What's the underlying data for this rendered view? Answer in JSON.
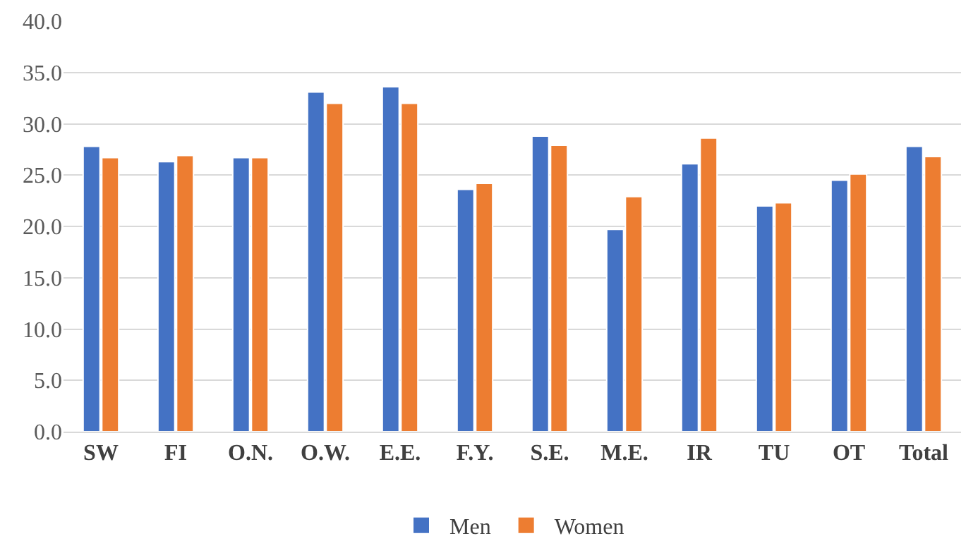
{
  "chart_data": {
    "type": "bar",
    "categories": [
      "SW",
      "FI",
      "O.N.",
      "O.W.",
      "E.E.",
      "F.Y.",
      "S.E.",
      "M.E.",
      "IR",
      "TU",
      "OT",
      "Total"
    ],
    "series": [
      {
        "name": "Men",
        "color": "#4472c4",
        "values": [
          27.8,
          26.3,
          26.7,
          33.1,
          33.6,
          23.6,
          28.8,
          19.7,
          26.1,
          22.0,
          24.5,
          27.8
        ]
      },
      {
        "name": "Women",
        "color": "#ed7d31",
        "values": [
          26.7,
          26.9,
          26.7,
          32.0,
          32.0,
          24.2,
          27.9,
          22.9,
          28.6,
          22.3,
          25.1,
          26.8
        ]
      }
    ],
    "ylim": [
      0,
      40
    ],
    "yticks": [
      {
        "value": 0,
        "label": "0.0"
      },
      {
        "value": 5,
        "label": "5.0"
      },
      {
        "value": 10,
        "label": "10.0"
      },
      {
        "value": 15,
        "label": "15.0"
      },
      {
        "value": 20,
        "label": "20.0"
      },
      {
        "value": 25,
        "label": "25.0"
      },
      {
        "value": 30,
        "label": "30.0"
      },
      {
        "value": 35,
        "label": "35.0"
      },
      {
        "value": 40,
        "label": "40.0"
      }
    ],
    "grid": "y",
    "legend": "bottom"
  }
}
